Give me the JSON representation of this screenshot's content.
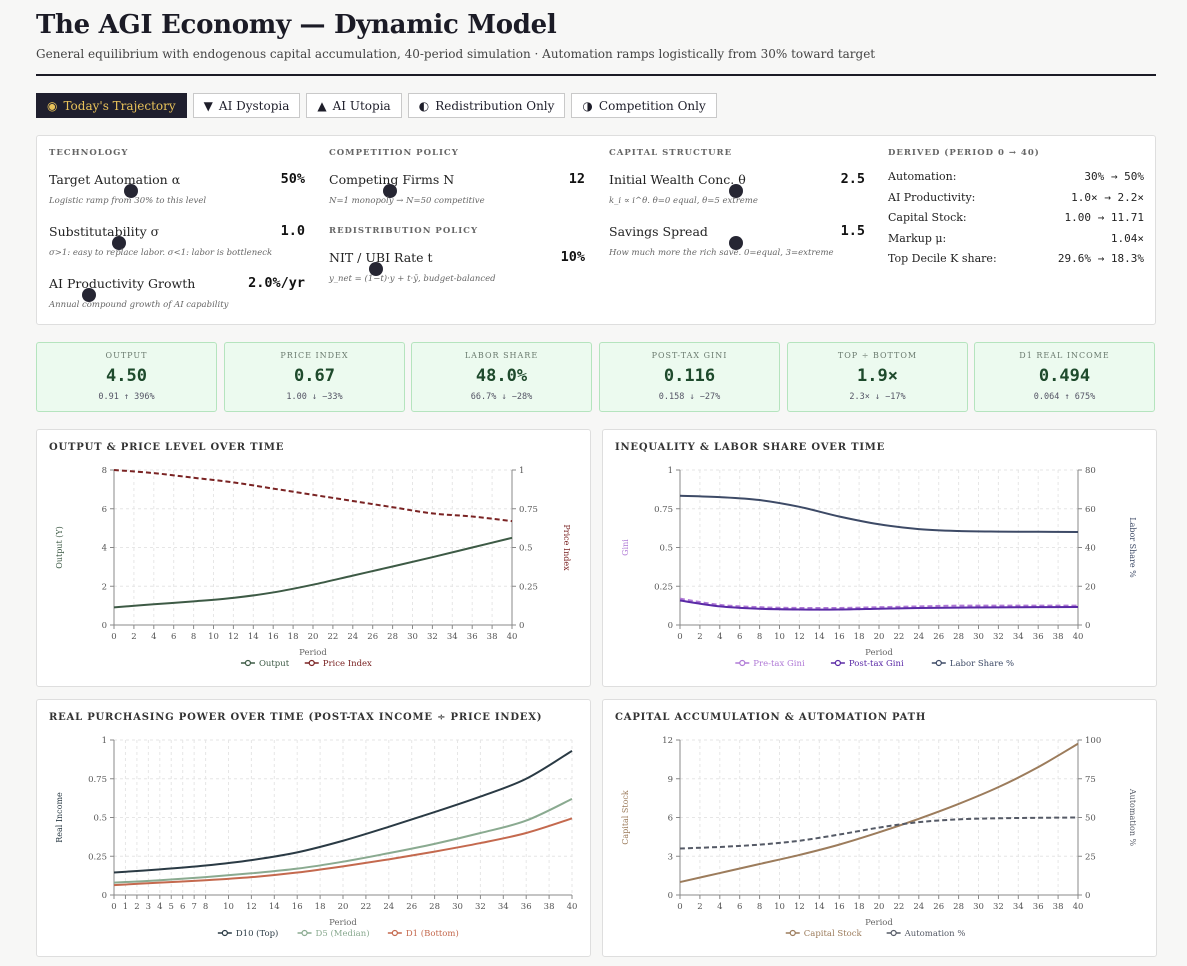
{
  "header": {
    "title": "The AGI Economy — Dynamic Model",
    "subtitle": "General equilibrium with endogenous capital accumulation, 40-period simulation · Automation ramps logistically from 30% toward target"
  },
  "scenarios": [
    {
      "icon": "◉",
      "label": "Today's Trajectory",
      "active": true
    },
    {
      "icon": "▼",
      "label": "AI Dystopia",
      "active": false
    },
    {
      "icon": "▲",
      "label": "AI Utopia",
      "active": false
    },
    {
      "icon": "◐",
      "label": "Redistribution Only",
      "active": false
    },
    {
      "icon": "◑",
      "label": "Competition Only",
      "active": false
    }
  ],
  "params": {
    "technology": {
      "title": "Technology",
      "automation": {
        "label": "Target Automation α",
        "value": "50%",
        "desc": "Logistic ramp from 30% to this level"
      },
      "substitutability": {
        "label": "Substitutability σ",
        "value": "1.0",
        "desc": "σ>1: easy to replace labor. σ<1: labor is bottleneck"
      },
      "growth": {
        "label": "AI Productivity Growth",
        "value": "2.0%/yr",
        "desc": "Annual compound growth of AI capability"
      }
    },
    "competition": {
      "title": "Competition Policy",
      "firms": {
        "label": "Competing Firms N",
        "value": "12",
        "desc": "N=1 monopoly → N=50 competitive"
      }
    },
    "redistribution": {
      "title": "Redistribution Policy",
      "nit": {
        "label": "NIT / UBI Rate t",
        "value": "10%",
        "desc": "y_net = (1−t)·y + t·ȳ, budget-balanced"
      }
    },
    "capital": {
      "title": "Capital Structure",
      "wealth": {
        "label": "Initial Wealth Conc. θ",
        "value": "2.5",
        "desc": "k_i ∝ i^θ. θ=0 equal, θ=5 extreme"
      },
      "savings": {
        "label": "Savings Spread",
        "value": "1.5",
        "desc": "How much more the rich save. 0=equal, 3=extreme"
      }
    },
    "derived": {
      "title": "Derived (Period 0 → 40)",
      "rows": [
        {
          "label": "Automation:",
          "value": "30% → 50%"
        },
        {
          "label": "AI Productivity:",
          "value": "1.0× → 2.2×"
        },
        {
          "label": "Capital Stock:",
          "value": "1.00 → 11.71"
        },
        {
          "label": "Markup μ:",
          "value": "1.04×"
        },
        {
          "label": "Top Decile K share:",
          "value": "29.6% → 18.3%"
        }
      ]
    }
  },
  "metrics": [
    {
      "label": "Output",
      "value": "4.50",
      "delta": "0.91 ↑ 396%"
    },
    {
      "label": "Price Index",
      "value": "0.67",
      "delta": "1.00 ↓ −33%"
    },
    {
      "label": "Labor Share",
      "value": "48.0%",
      "delta": "66.7% ↓ −28%"
    },
    {
      "label": "Post-Tax Gini",
      "value": "0.116",
      "delta": "0.158 ↓ −27%"
    },
    {
      "label": "Top ÷ Bottom",
      "value": "1.9×",
      "delta": "2.3× ↓ −17%"
    },
    {
      "label": "D1 Real Income",
      "value": "0.494",
      "delta": "0.064 ↑ 675%"
    }
  ],
  "chart_data": [
    {
      "id": "output_price",
      "type": "line",
      "title": "Output & Price Level Over Time",
      "xlabel": "Period",
      "ylabel": "Output (Y)",
      "y2label": "Price Index",
      "x": [
        0,
        4,
        8,
        12,
        16,
        20,
        24,
        28,
        32,
        36,
        40
      ],
      "xticks": [
        0,
        2,
        4,
        6,
        8,
        10,
        12,
        14,
        16,
        18,
        20,
        22,
        24,
        26,
        28,
        30,
        32,
        34,
        36,
        38,
        40
      ],
      "ylim": [
        0,
        8
      ],
      "yticks": [
        0,
        2,
        4,
        6,
        8
      ],
      "y2lim": [
        0,
        1
      ],
      "y2ticks": [
        0,
        0.25,
        0.5,
        0.75,
        1
      ],
      "series": [
        {
          "name": "Output",
          "axis": "left",
          "color": "#3d5a45",
          "dashed": false,
          "values": [
            0.91,
            1.07,
            1.22,
            1.4,
            1.68,
            2.08,
            2.55,
            3.02,
            3.5,
            4.0,
            4.5
          ]
        },
        {
          "name": "Price Index",
          "axis": "right",
          "color": "#7a2323",
          "dashed": true,
          "values": [
            1.0,
            0.98,
            0.95,
            0.92,
            0.88,
            0.84,
            0.8,
            0.76,
            0.72,
            0.7,
            0.67
          ]
        }
      ]
    },
    {
      "id": "inequality",
      "type": "line",
      "title": "Inequality & Labor Share Over Time",
      "xlabel": "Period",
      "ylabel": "Gini",
      "y2label": "Labor Share %",
      "x": [
        0,
        4,
        8,
        12,
        16,
        20,
        24,
        28,
        32,
        36,
        40
      ],
      "xticks": [
        0,
        2,
        4,
        6,
        8,
        10,
        12,
        14,
        16,
        18,
        20,
        22,
        24,
        26,
        28,
        30,
        32,
        34,
        36,
        38,
        40
      ],
      "ylim": [
        0,
        1
      ],
      "yticks": [
        0,
        0.25,
        0.5,
        0.75,
        1
      ],
      "y2lim": [
        0,
        80
      ],
      "y2ticks": [
        0,
        20,
        40,
        60,
        80
      ],
      "series": [
        {
          "name": "Pre-tax Gini",
          "axis": "left",
          "color": "#b07ad6",
          "dashed": true,
          "values": [
            0.17,
            0.13,
            0.115,
            0.11,
            0.11,
            0.115,
            0.12,
            0.125,
            0.125,
            0.125,
            0.125
          ]
        },
        {
          "name": "Post-tax Gini",
          "axis": "left",
          "color": "#5a2aa6",
          "dashed": false,
          "values": [
            0.158,
            0.12,
            0.105,
            0.1,
            0.1,
            0.105,
            0.11,
            0.112,
            0.114,
            0.115,
            0.116
          ]
        },
        {
          "name": "Labor Share %",
          "axis": "right",
          "color": "#3d4a66",
          "dashed": false,
          "values": [
            66.7,
            66.0,
            64.5,
            61.0,
            56.0,
            52.0,
            49.5,
            48.5,
            48.2,
            48.1,
            48.0
          ]
        }
      ]
    },
    {
      "id": "real_income",
      "type": "line",
      "title": "Real Purchasing Power Over Time (Post-Tax Income ÷ Price Index)",
      "xlabel": "Period",
      "ylabel": "Real Income",
      "x": [
        0,
        4,
        8,
        12,
        16,
        20,
        24,
        28,
        32,
        36,
        40
      ],
      "xticks": [
        0,
        1,
        2,
        3,
        4,
        5,
        6,
        7,
        8,
        10,
        12,
        14,
        16,
        18,
        20,
        22,
        24,
        26,
        28,
        30,
        32,
        34,
        36,
        38,
        40
      ],
      "ylim": [
        0,
        1
      ],
      "yticks": [
        0,
        0.25,
        0.5,
        0.75,
        1
      ],
      "series": [
        {
          "name": "D10 (Top)",
          "color": "#2a3a44",
          "dashed": false,
          "values": [
            0.145,
            0.165,
            0.19,
            0.225,
            0.275,
            0.35,
            0.44,
            0.535,
            0.635,
            0.75,
            0.93
          ]
        },
        {
          "name": "D5 (Median)",
          "color": "#8aaa90",
          "dashed": false,
          "values": [
            0.08,
            0.095,
            0.115,
            0.14,
            0.17,
            0.215,
            0.27,
            0.33,
            0.4,
            0.48,
            0.62
          ]
        },
        {
          "name": "D1 (Bottom)",
          "color": "#c4694e",
          "dashed": false,
          "values": [
            0.064,
            0.08,
            0.095,
            0.115,
            0.145,
            0.185,
            0.23,
            0.28,
            0.335,
            0.4,
            0.494
          ]
        }
      ]
    },
    {
      "id": "capital",
      "type": "line",
      "title": "Capital Accumulation & Automation Path",
      "xlabel": "Period",
      "ylabel": "Capital Stock",
      "y2label": "Automation %",
      "x": [
        0,
        4,
        8,
        12,
        16,
        20,
        24,
        28,
        32,
        36,
        40
      ],
      "xticks": [
        0,
        2,
        4,
        6,
        8,
        10,
        12,
        14,
        16,
        18,
        20,
        22,
        24,
        26,
        28,
        30,
        32,
        34,
        36,
        38,
        40
      ],
      "ylim": [
        0,
        12
      ],
      "yticks": [
        0,
        3,
        6,
        9,
        12
      ],
      "y2lim": [
        0,
        100
      ],
      "y2ticks": [
        0,
        25,
        50,
        75,
        100
      ],
      "series": [
        {
          "name": "Capital Stock",
          "axis": "left",
          "color": "#9c7c5c",
          "dashed": false,
          "values": [
            1.0,
            1.7,
            2.4,
            3.1,
            3.9,
            4.85,
            5.9,
            7.05,
            8.35,
            9.9,
            11.71
          ]
        },
        {
          "name": "Automation %",
          "axis": "right",
          "color": "#555a66",
          "dashed": true,
          "values": [
            30,
            31,
            32.5,
            35,
            39,
            43.5,
            47,
            48.8,
            49.5,
            49.8,
            50
          ]
        }
      ]
    }
  ]
}
